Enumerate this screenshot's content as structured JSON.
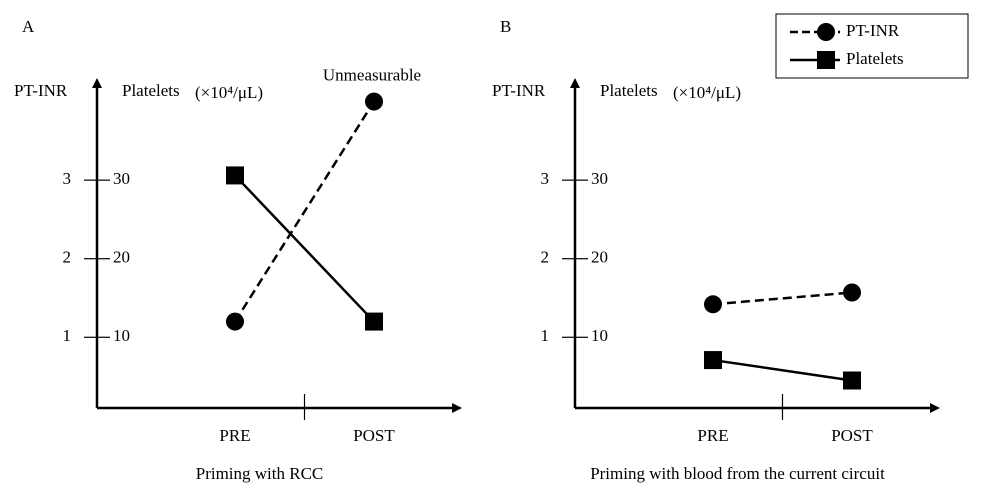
{
  "chart_data": [
    {
      "type": "line",
      "panel": "A",
      "ylabel": "PT-INR",
      "y2label": "Platelets",
      "y2unit": "(×10⁴/μL)",
      "xlabel": "Priming with RCC",
      "categories": [
        "PRE",
        "POST"
      ],
      "ylim": [
        0.1,
        4.3
      ],
      "yticks": [
        1,
        2,
        3
      ],
      "y2lim": [
        1,
        43
      ],
      "y2ticks": [
        10,
        20,
        30
      ],
      "annotation": "Unmeasurable",
      "series": [
        {
          "name": "PT-INR",
          "color": "#000000",
          "marker": "circle",
          "linestyle": "dashed",
          "values": [
            1.2,
            4.0
          ]
        },
        {
          "name": "Platelets",
          "color": "#000000",
          "marker": "square",
          "linestyle": "solid",
          "axis": "y2",
          "values": [
            30.6,
            12
          ]
        }
      ]
    },
    {
      "type": "line",
      "panel": "B",
      "ylabel": "PT-INR",
      "y2label": "Platelets",
      "y2unit": "(×10⁴/μL)",
      "xlabel": "Priming with blood from the current circuit",
      "categories": [
        "PRE",
        "POST"
      ],
      "ylim": [
        0.1,
        4.3
      ],
      "yticks": [
        1,
        2,
        3
      ],
      "y2lim": [
        1,
        43
      ],
      "y2ticks": [
        10,
        20,
        30
      ],
      "legend": "upper right",
      "series": [
        {
          "name": "PT-INR",
          "color": "#000000",
          "marker": "circle",
          "linestyle": "dashed",
          "values": [
            1.42,
            1.57
          ]
        },
        {
          "name": "Platelets",
          "color": "#000000",
          "marker": "square",
          "linestyle": "solid",
          "axis": "y2",
          "values": [
            7.1,
            4.5
          ]
        }
      ]
    }
  ]
}
